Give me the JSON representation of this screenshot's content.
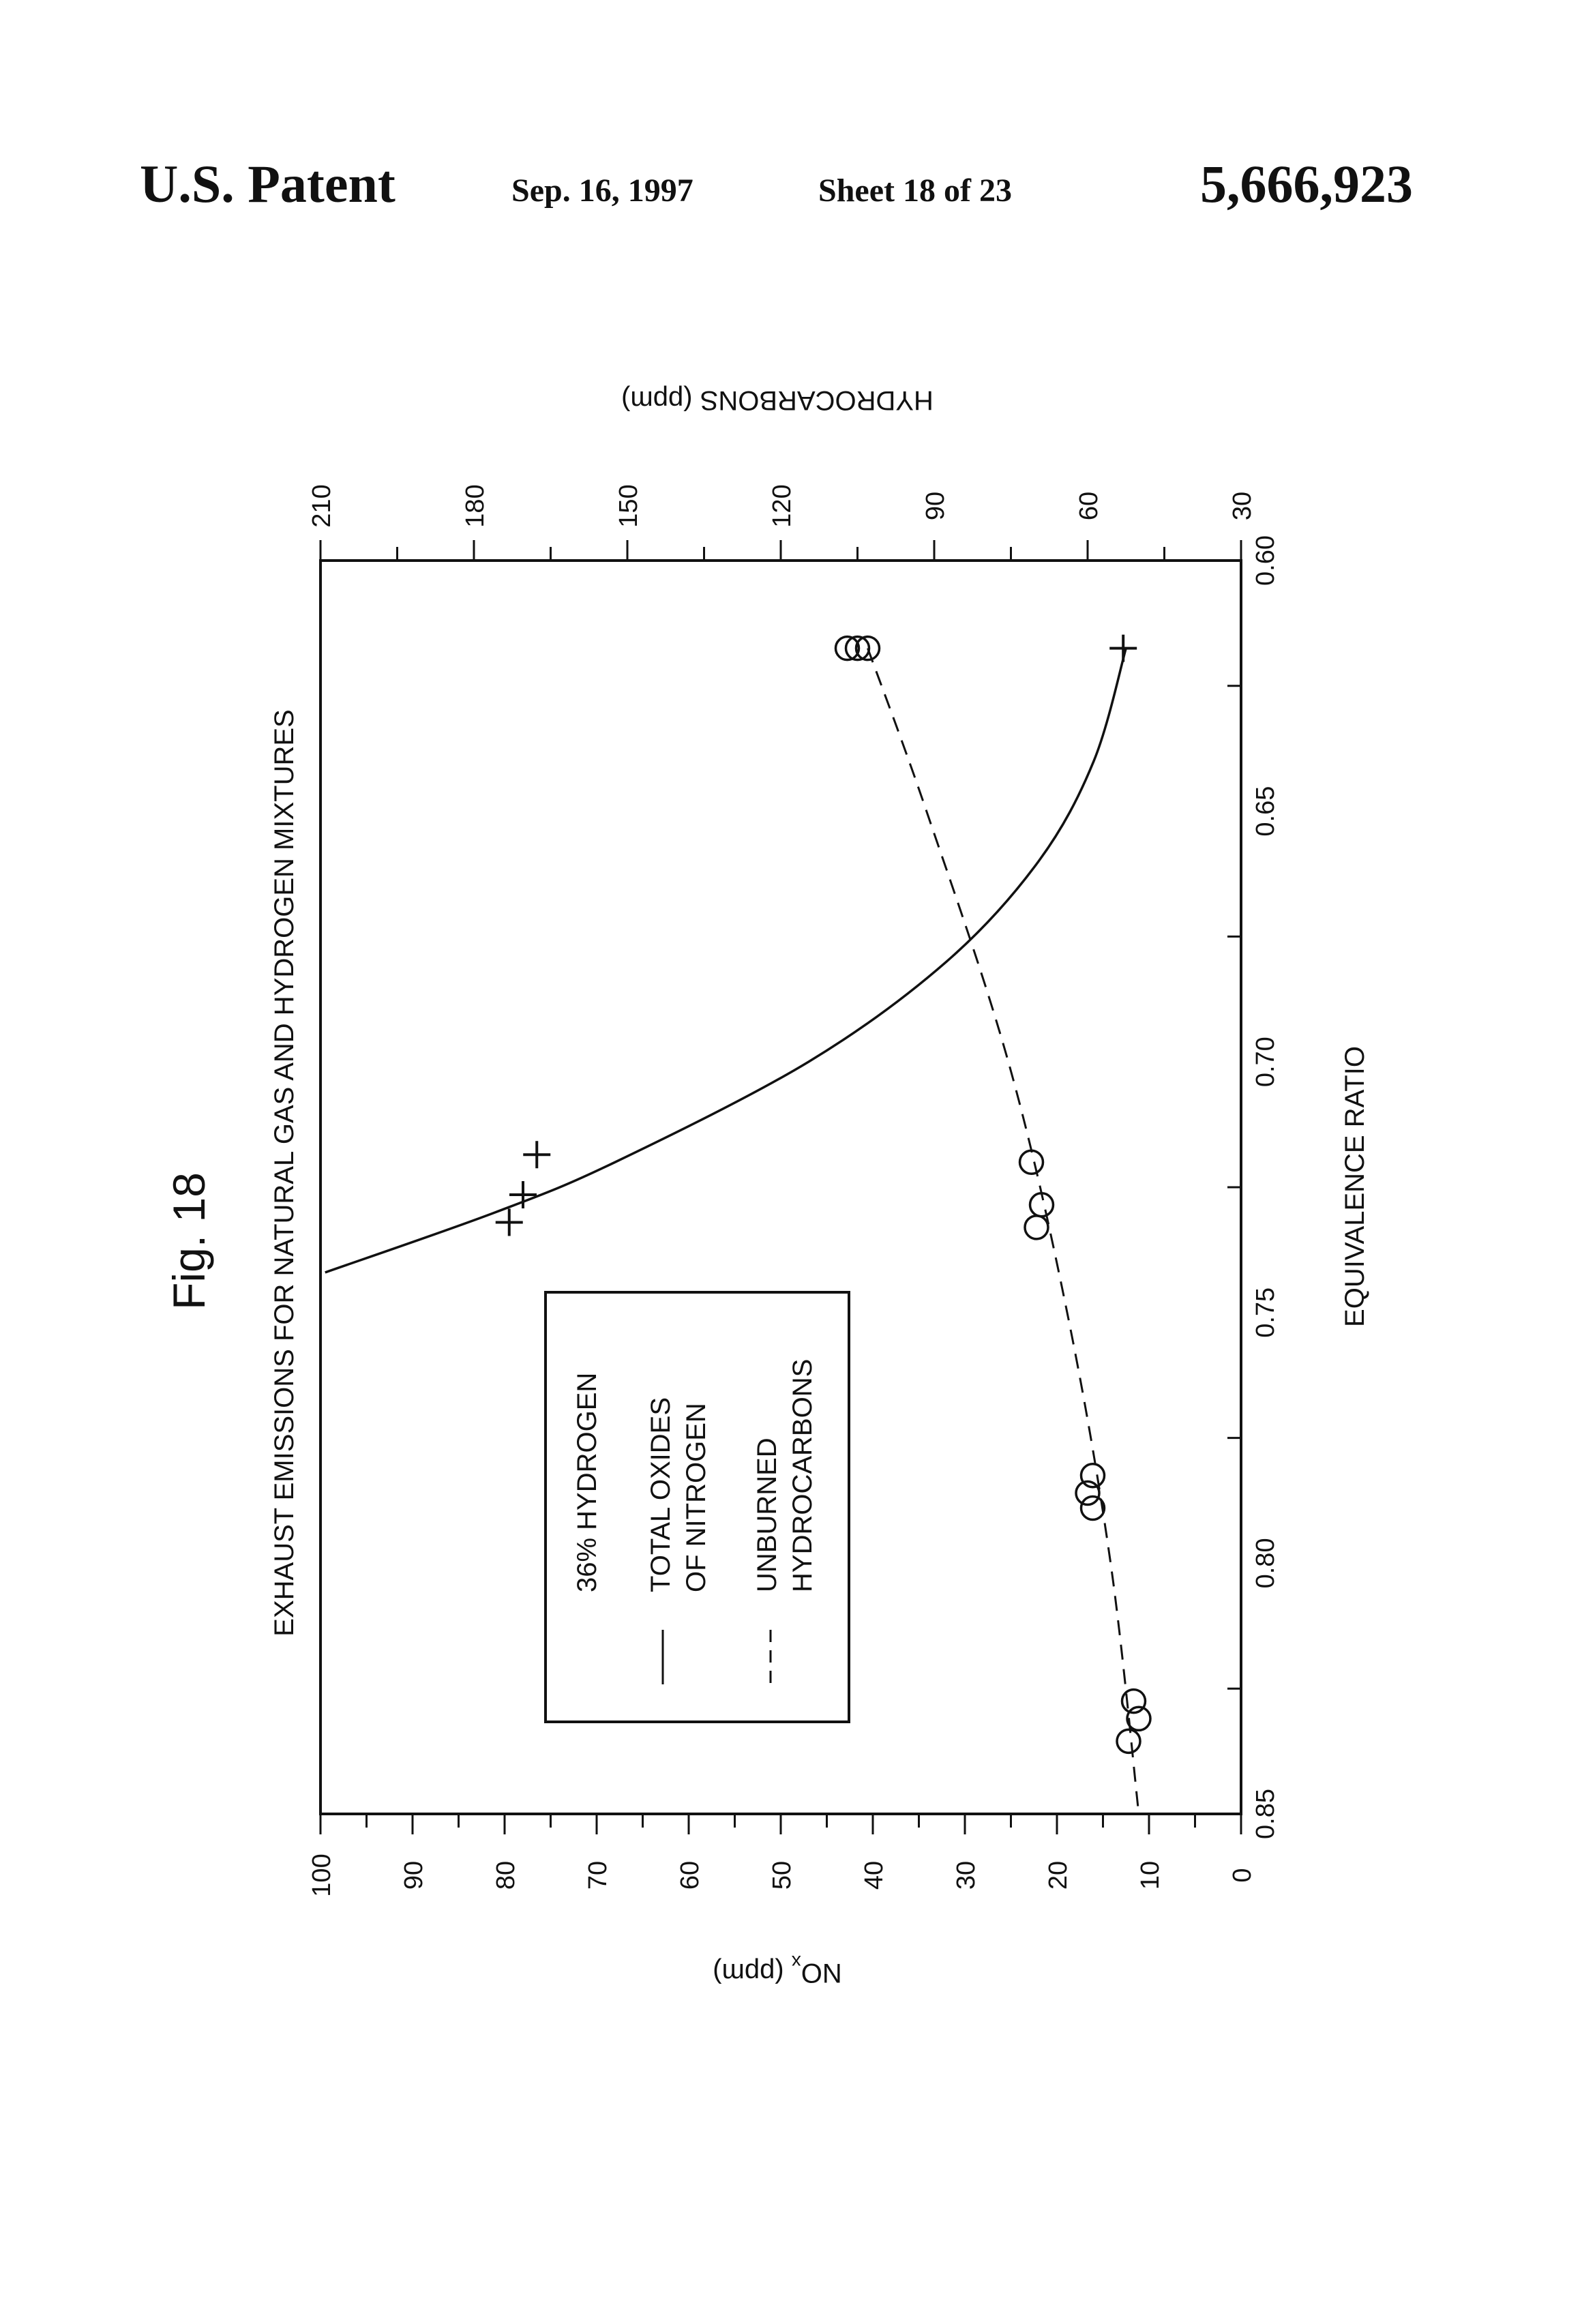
{
  "header": {
    "left": "U.S. Patent",
    "date": "Sep. 16, 1997",
    "sheet": "Sheet 18 of 23",
    "number": "5,666,923"
  },
  "figure": {
    "label": "Fig. 18",
    "title": "EXHAUST EMISSIONS FOR NATURAL GAS AND HYDROGEN MIXTURES"
  },
  "chart_data": {
    "type": "line",
    "orientation": "rotated 90° counter-clockwise on the page",
    "title": "EXHAUST EMISSIONS FOR NATURAL GAS AND HYDROGEN MIXTURES",
    "xlabel": "EQUIVALENCE RATIO",
    "xlim": [
      0.6,
      0.85
    ],
    "xticks": [
      "0.60",
      "0.65",
      "0.70",
      "0.75",
      "0.80",
      "0.85"
    ],
    "y_left": {
      "label_main": "NO",
      "label_sub": "x",
      "label_unit": " (ppm)",
      "lim": [
        0,
        100
      ],
      "ticks": [
        "0",
        "10",
        "20",
        "30",
        "40",
        "50",
        "60",
        "70",
        "80",
        "90",
        "100"
      ]
    },
    "y_right": {
      "label": "HYDROCARBONS (ppm)",
      "lim": [
        30,
        210
      ],
      "ticks": [
        "30",
        "60",
        "90",
        "120",
        "150",
        "180",
        "210"
      ]
    },
    "legend": {
      "placement": "lower-center",
      "title": "36% HYDROGEN",
      "items": [
        {
          "style": "solid",
          "lines": [
            "TOTAL OXIDES",
            "OF NITROGEN"
          ]
        },
        {
          "style": "dashed",
          "lines": [
            "UNBURNED",
            "HYDROCARBONS"
          ]
        }
      ]
    },
    "series": [
      {
        "axis": "left",
        "line_style": "solid",
        "marker": "plus",
        "points": [
          {
            "x": 0.6175,
            "y": 12.8
          },
          {
            "x": 0.7185,
            "y": 76.5
          },
          {
            "x": 0.7265,
            "y": 78.0
          },
          {
            "x": 0.732,
            "y": 79.5
          }
        ],
        "curve": [
          {
            "x": 0.6175,
            "y": 12.5
          },
          {
            "x": 0.64,
            "y": 16.0
          },
          {
            "x": 0.66,
            "y": 22.0
          },
          {
            "x": 0.68,
            "y": 32.0
          },
          {
            "x": 0.7,
            "y": 47.0
          },
          {
            "x": 0.72,
            "y": 68.0
          },
          {
            "x": 0.73,
            "y": 81.0
          },
          {
            "x": 0.742,
            "y": 99.5
          }
        ]
      },
      {
        "axis": "right",
        "line_style": "dashed",
        "marker": "circle",
        "points": [
          {
            "x": 0.6175,
            "y": 103
          },
          {
            "x": 0.6175,
            "y": 105
          },
          {
            "x": 0.6175,
            "y": 107
          },
          {
            "x": 0.72,
            "y": 71
          },
          {
            "x": 0.7285,
            "y": 69
          },
          {
            "x": 0.733,
            "y": 70
          },
          {
            "x": 0.7825,
            "y": 59
          },
          {
            "x": 0.786,
            "y": 60
          },
          {
            "x": 0.789,
            "y": 59
          },
          {
            "x": 0.8275,
            "y": 51
          },
          {
            "x": 0.831,
            "y": 50
          },
          {
            "x": 0.8355,
            "y": 52
          }
        ],
        "curve": [
          {
            "x": 0.6175,
            "y": 103
          },
          {
            "x": 0.65,
            "y": 91.5
          },
          {
            "x": 0.7,
            "y": 75.5
          },
          {
            "x": 0.75,
            "y": 64
          },
          {
            "x": 0.8,
            "y": 55.5
          },
          {
            "x": 0.85,
            "y": 50
          }
        ]
      }
    ],
    "grid": false
  }
}
